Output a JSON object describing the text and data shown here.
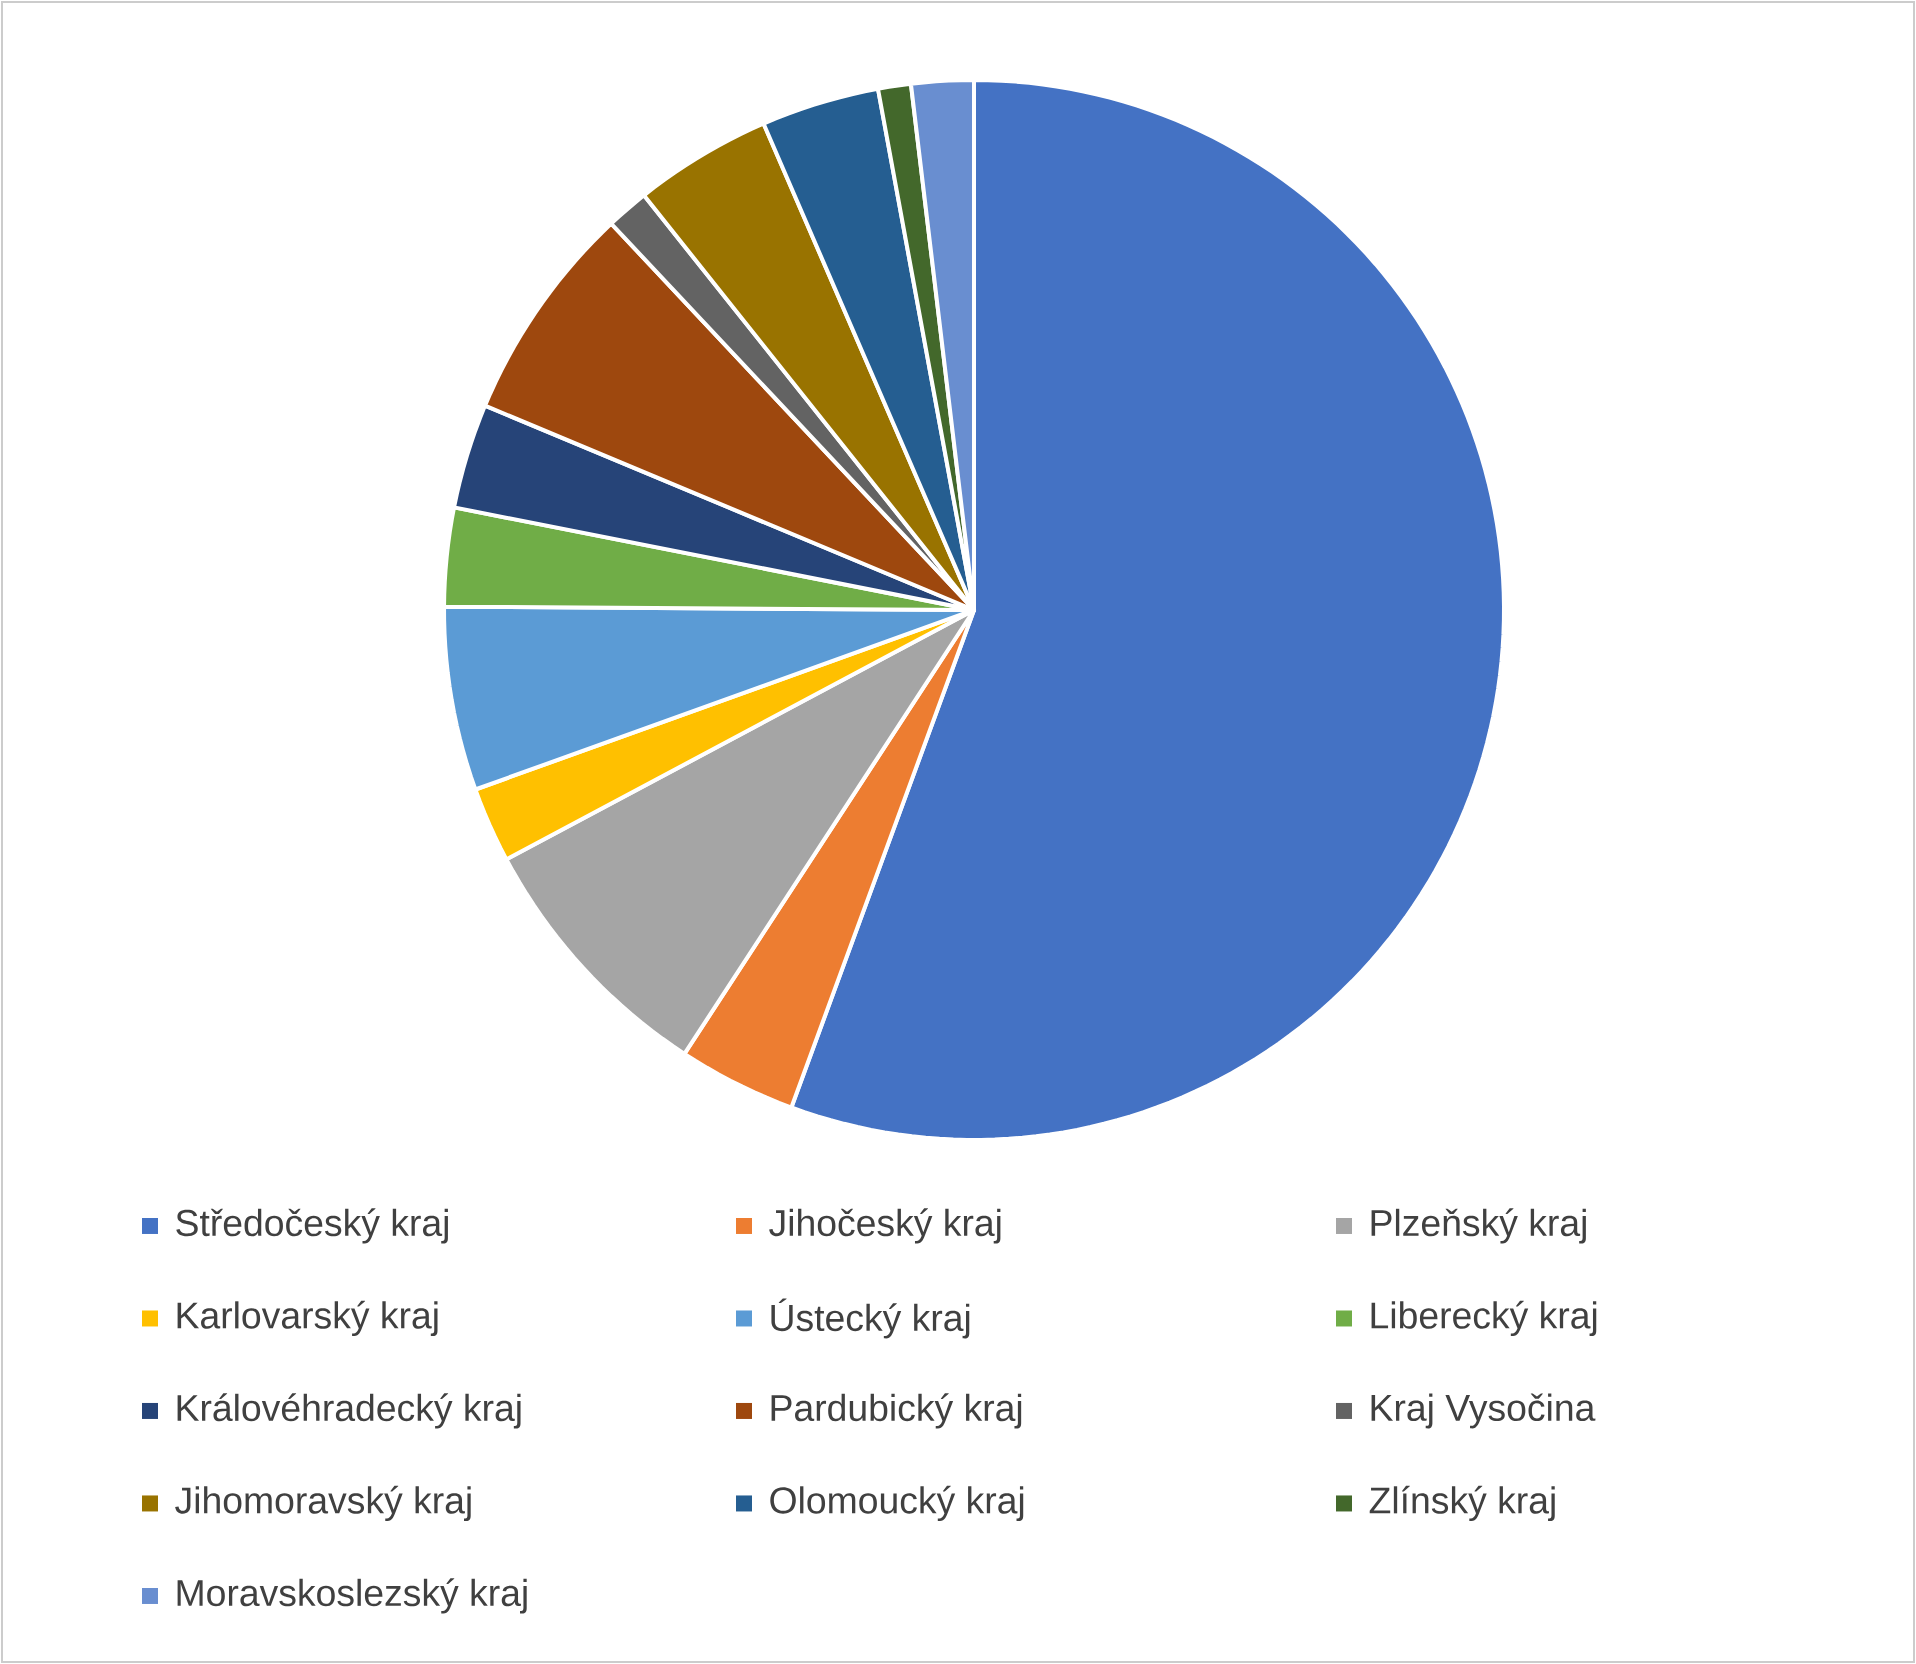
{
  "chart_data": {
    "type": "pie",
    "categories": [
      "Středočeský kraj",
      "Jihočeský kraj",
      "Plzeňský kraj",
      "Karlovarský kraj",
      "Ústecký kraj",
      "Liberecký kraj",
      "Královéhradecký kraj",
      "Pardubický kraj",
      "Kraj Vysočina",
      "Jihomoravský kraj",
      "Olomoucký kraj",
      "Zlínský kraj",
      "Moravskoslezský kraj"
    ],
    "values": [
      55.6,
      3.6,
      8.0,
      2.3,
      5.6,
      3.0,
      3.2,
      6.7,
      1.3,
      4.2,
      3.6,
      1.0,
      1.9
    ],
    "colors": [
      "#4472c4",
      "#ed7d31",
      "#a5a5a5",
      "#ffc000",
      "#5b9bd5",
      "#70ad47",
      "#264478",
      "#9e480e",
      "#636363",
      "#997300",
      "#255e91",
      "#43682b",
      "#698ed0"
    ],
    "legend": "bottom"
  }
}
